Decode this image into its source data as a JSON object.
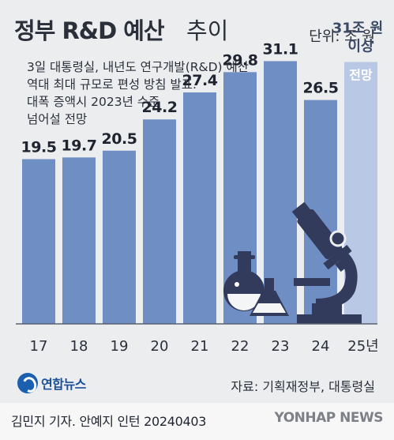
{
  "header": {
    "title_bold": "정부 R&D 예산",
    "title_light": "추이",
    "unit": "단위: 조 원"
  },
  "note_lines": [
    "3일 대통령실, 내년도 연구개발(R&D) 예산",
    "역대 최대 규모로 편성 방침 발표.",
    "대폭 증액시 2023년 수준",
    "넘어설 전망"
  ],
  "chart_data": {
    "type": "bar",
    "categories": [
      "17",
      "18",
      "19",
      "20",
      "21",
      "22",
      "23",
      "24",
      "25년"
    ],
    "values": [
      19.5,
      19.7,
      20.5,
      24.2,
      27.4,
      29.8,
      31.1,
      26.5,
      31
    ],
    "value_labels": [
      "19.5",
      "19.7",
      "20.5",
      "24.2",
      "27.4",
      "29.8",
      "31.1",
      "26.5",
      ""
    ],
    "forecast": {
      "category": "25년",
      "label_line1": "31조 원",
      "label_line2": "이상",
      "inside_label": "전망"
    },
    "colors": {
      "bar": "#6f8fc4",
      "forecast_bar": "#b9c8e4"
    },
    "ylim": [
      0,
      36
    ],
    "grid": false
  },
  "icons": [
    "flask-icon",
    "erlenmeyer-icon",
    "microscope-icon"
  ],
  "footer": {
    "logo_text": "연합뉴스",
    "source": "자료: 기획재정부, 대통령실",
    "credit": "김민지 기자. 안예지 인턴 20240403",
    "watermark": "YONHAP NEWS"
  }
}
